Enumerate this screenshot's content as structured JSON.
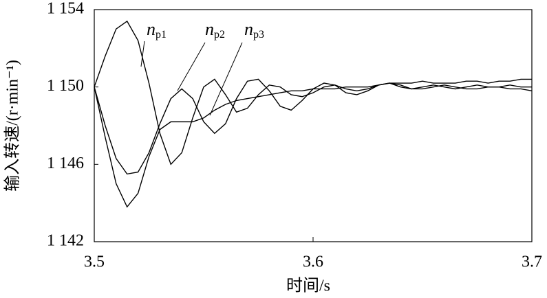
{
  "chart_data": {
    "type": "line",
    "xlabel": "时间/s",
    "ylabel": "输入转速/(r·min⁻¹)",
    "x": [
      3.5,
      3.505,
      3.51,
      3.515,
      3.52,
      3.525,
      3.53,
      3.535,
      3.54,
      3.545,
      3.55,
      3.555,
      3.56,
      3.565,
      3.57,
      3.575,
      3.58,
      3.585,
      3.59,
      3.595,
      3.6,
      3.605,
      3.61,
      3.615,
      3.62,
      3.625,
      3.63,
      3.635,
      3.64,
      3.645,
      3.65,
      3.655,
      3.66,
      3.665,
      3.67,
      3.675,
      3.68,
      3.685,
      3.69,
      3.695,
      3.7
    ],
    "series": [
      {
        "label": {
          "text": "n",
          "sub": "p1"
        },
        "color": "#000000",
        "values": [
          1150,
          1151.6,
          1153.0,
          1153.4,
          1152.4,
          1150.2,
          1147.6,
          1146.0,
          1146.6,
          1148.4,
          1150.0,
          1150.4,
          1149.6,
          1148.7,
          1148.9,
          1149.6,
          1150.1,
          1150.0,
          1149.6,
          1149.5,
          1149.7,
          1150.0,
          1150.1,
          1149.9,
          1149.8,
          1149.9,
          1150.1,
          1150.2,
          1150.0,
          1149.9,
          1150.0,
          1150.1,
          1150.0,
          1149.9,
          1150.0,
          1150.1,
          1150.0,
          1150.0,
          1150.1,
          1150.0,
          1150.0
        ]
      },
      {
        "label": {
          "text": "n",
          "sub": "p2"
        },
        "color": "#000000",
        "values": [
          1150,
          1148.0,
          1146.3,
          1145.5,
          1145.6,
          1146.6,
          1148.1,
          1149.4,
          1149.9,
          1149.4,
          1148.2,
          1147.6,
          1148.1,
          1149.4,
          1150.3,
          1150.4,
          1149.8,
          1149.0,
          1148.8,
          1149.3,
          1149.9,
          1150.2,
          1150.1,
          1149.7,
          1149.6,
          1149.8,
          1150.1,
          1150.2,
          1150.1,
          1149.9,
          1149.9,
          1150.0,
          1150.1,
          1150.0,
          1149.9,
          1149.9,
          1150.0,
          1150.0,
          1149.9,
          1149.9,
          1149.8
        ]
      },
      {
        "label": {
          "text": "n",
          "sub": "p3"
        },
        "color": "#000000",
        "values": [
          1150,
          1147.4,
          1145.0,
          1143.8,
          1144.5,
          1146.4,
          1147.8,
          1148.2,
          1148.2,
          1148.2,
          1148.4,
          1148.8,
          1149.1,
          1149.3,
          1149.4,
          1149.5,
          1149.6,
          1149.7,
          1149.8,
          1149.8,
          1149.9,
          1149.9,
          1149.9,
          1150.0,
          1150.0,
          1150.0,
          1150.1,
          1150.2,
          1150.2,
          1150.2,
          1150.3,
          1150.2,
          1150.2,
          1150.2,
          1150.3,
          1150.3,
          1150.2,
          1150.3,
          1150.3,
          1150.4,
          1150.4
        ]
      }
    ],
    "xlim": [
      3.5,
      3.7
    ],
    "xticks": [
      3.5,
      3.6,
      3.7
    ],
    "ylim": [
      1142,
      1154
    ],
    "yticks": [
      {
        "value": 1142,
        "label": "1 142"
      },
      {
        "value": 1146,
        "label": "1 146"
      },
      {
        "value": 1150,
        "label": "1 150"
      },
      {
        "value": 1154,
        "label": "1 154"
      }
    ]
  }
}
